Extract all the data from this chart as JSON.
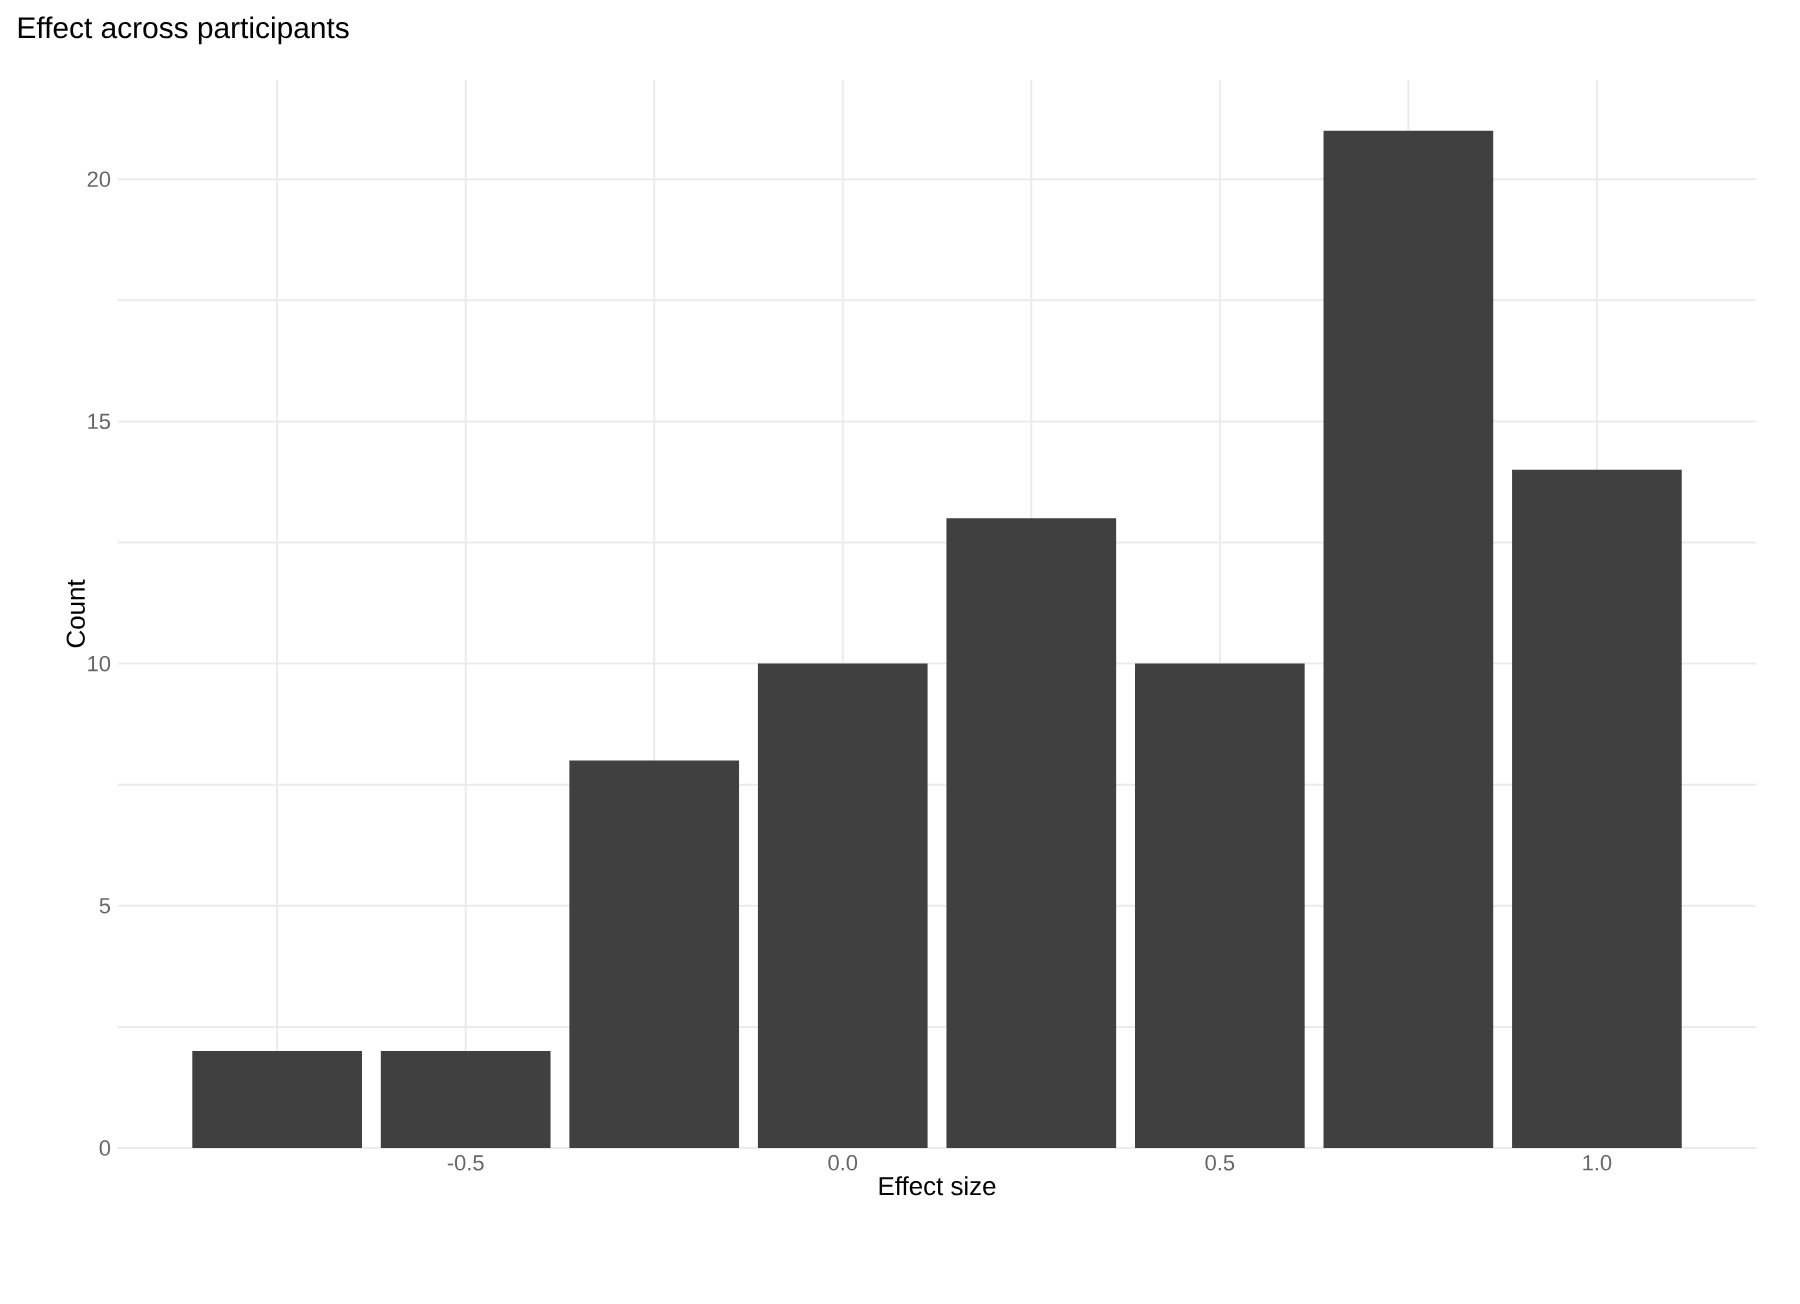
{
  "chart_data": {
    "type": "bar",
    "title": "Effect across participants",
    "xlabel": "Effect size",
    "ylabel": "Count",
    "x": [
      -0.75,
      -0.5,
      -0.25,
      0.0,
      0.25,
      0.5,
      0.75,
      1.0
    ],
    "values": [
      2,
      2,
      8,
      10,
      13,
      10,
      21,
      14
    ],
    "color": "#404040",
    "xlim": [
      -0.961,
      1.211
    ],
    "ylim": [
      0,
      22.05
    ],
    "xticks": [
      {
        "value": -0.75,
        "label": null
      },
      {
        "value": -0.5,
        "label": "-0.5"
      },
      {
        "value": -0.25,
        "label": null
      },
      {
        "value": 0.0,
        "label": "0.0"
      },
      {
        "value": 0.25,
        "label": null
      },
      {
        "value": 0.5,
        "label": "0.5"
      },
      {
        "value": 0.75,
        "label": null
      },
      {
        "value": 1.0,
        "label": "1.0"
      }
    ],
    "yticks": [
      0,
      {
        "value": 2.5,
        "label": null
      },
      5,
      {
        "value": 7.5,
        "label": null
      },
      10,
      {
        "value": 12.5,
        "label": null
      },
      15,
      {
        "value": 17.5,
        "label": null
      },
      20
    ],
    "grid": true
  }
}
